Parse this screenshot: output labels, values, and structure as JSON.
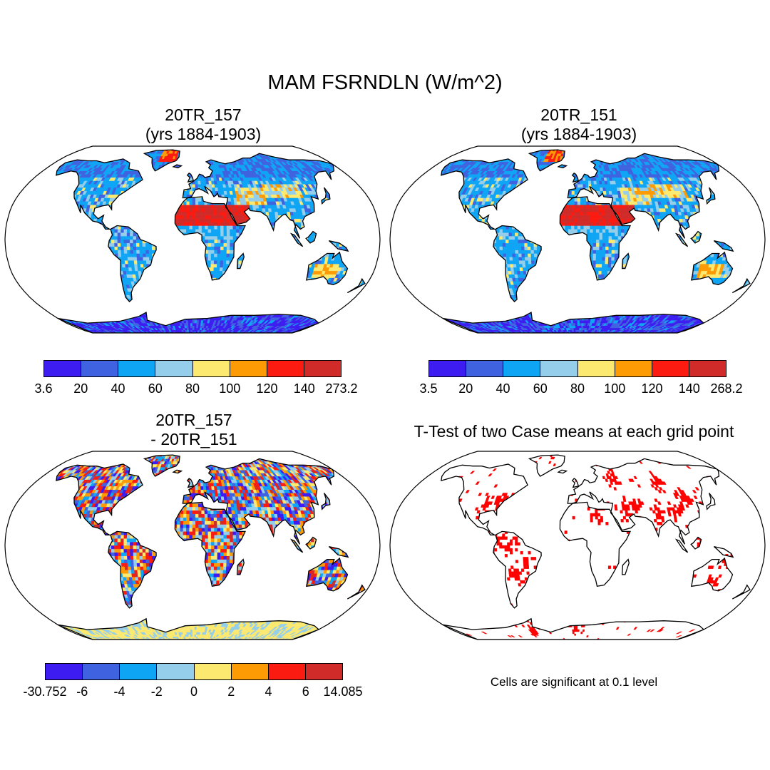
{
  "title": "MAM FSRNDLN (W/m^2)",
  "panels": [
    {
      "id": "case1",
      "title_line1": "20TR_157",
      "title_line2": "(yrs 1884-1903)",
      "colorbar_labels": [
        "3.6",
        "20",
        "40",
        "60",
        "80",
        "100",
        "120",
        "140",
        "273.2"
      ]
    },
    {
      "id": "case2",
      "title_line1": "20TR_151",
      "title_line2": "(yrs 1884-1903)",
      "colorbar_labels": [
        "3.5",
        "20",
        "40",
        "60",
        "80",
        "100",
        "120",
        "140",
        "268.2"
      ]
    },
    {
      "id": "diff",
      "title_line1": "20TR_157",
      "title_line2": "- 20TR_151",
      "colorbar_labels": [
        "-30.752",
        "-6",
        "-4",
        "-2",
        "0",
        "2",
        "4",
        "6",
        "14.085"
      ]
    },
    {
      "id": "ttest",
      "title_line1": "T-Test of two Case means at each grid point",
      "note": "Cells are significant at 0.1 level"
    }
  ],
  "colorbar_colors": [
    "#3c1cf0",
    "#3f63e0",
    "#0fa5f5",
    "#94ceeb",
    "#fce970",
    "#fd9b05",
    "#fb1b10",
    "#d12b29"
  ],
  "significance_color": "#ff0000"
}
